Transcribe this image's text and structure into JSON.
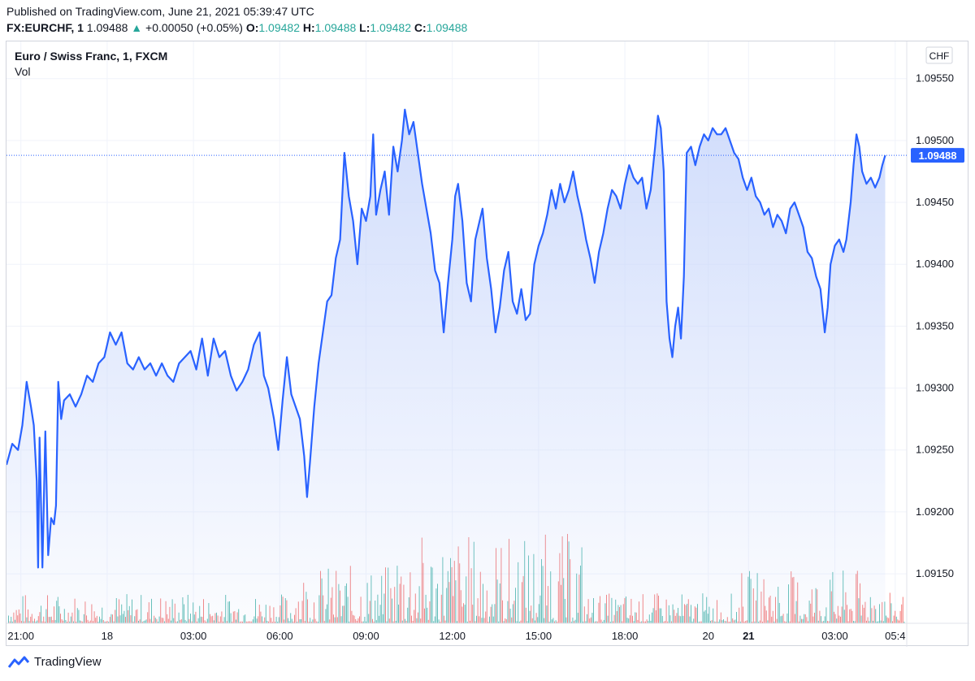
{
  "header": {
    "published": "Published on TradingView.com, June 21, 2021 05:39:47 UTC",
    "symbol": "FX:EURCHF, 1",
    "last": "1.09488",
    "arrow": "▲",
    "change": "+0.00050 (+0.05%)",
    "o_label": "O:",
    "o_value": "1.09482",
    "h_label": "H:",
    "h_value": "1.09488",
    "l_label": "L:",
    "l_value": "1.09482",
    "c_label": "C:",
    "c_value": "1.09488"
  },
  "footer": {
    "brand": "TradingView"
  },
  "colors": {
    "line": "#2962ff",
    "area_top": "#c8d6fb",
    "grid": "#f0f3fa",
    "vol_up": "#26a69a",
    "vol_down": "#ef5350",
    "text": "#131722",
    "price_tag": "#2962ff"
  },
  "chart_data": {
    "type": "area",
    "title": "Euro / Swiss Franc, 1, FXCM",
    "legend_extra": "Vol",
    "currency": "CHF",
    "last_price": "1.09488",
    "y_ticks": [
      "1.09550",
      "1.09500",
      "1.09450",
      "1.09400",
      "1.09350",
      "1.09300",
      "1.09250",
      "1.09200",
      "1.09150"
    ],
    "ylim": [
      1.0911,
      1.0958
    ],
    "x_ticks": [
      {
        "label": "21:00",
        "t": 0.5,
        "bold": false
      },
      {
        "label": "18",
        "t": 3.5,
        "bold": false
      },
      {
        "label": "03:00",
        "t": 6.5,
        "bold": false
      },
      {
        "label": "06:00",
        "t": 9.5,
        "bold": false
      },
      {
        "label": "09:00",
        "t": 12.5,
        "bold": false
      },
      {
        "label": "12:00",
        "t": 15.5,
        "bold": false
      },
      {
        "label": "15:00",
        "t": 18.5,
        "bold": false
      },
      {
        "label": "18:00",
        "t": 21.5,
        "bold": false
      },
      {
        "label": "20",
        "t": 24.4,
        "bold": false
      },
      {
        "label": "21",
        "t": 25.8,
        "bold": true
      },
      {
        "label": "03:00",
        "t": 28.8,
        "bold": false
      },
      {
        "label": "05:4",
        "t": 30.9,
        "bold": false
      }
    ],
    "xlim": [
      0,
      31.3
    ],
    "series": [
      {
        "values": [
          [
            0.0,
            1.09238
          ],
          [
            0.2,
            1.09255
          ],
          [
            0.4,
            1.0925
          ],
          [
            0.55,
            1.0927
          ],
          [
            0.7,
            1.09305
          ],
          [
            0.85,
            1.09285
          ],
          [
            0.95,
            1.0927
          ],
          [
            1.05,
            1.09225
          ],
          [
            1.1,
            1.09155
          ],
          [
            1.15,
            1.0926
          ],
          [
            1.25,
            1.09155
          ],
          [
            1.35,
            1.09265
          ],
          [
            1.45,
            1.09165
          ],
          [
            1.55,
            1.09195
          ],
          [
            1.65,
            1.0919
          ],
          [
            1.72,
            1.09205
          ],
          [
            1.8,
            1.09305
          ],
          [
            1.9,
            1.09275
          ],
          [
            2.0,
            1.0929
          ],
          [
            2.2,
            1.09295
          ],
          [
            2.4,
            1.09285
          ],
          [
            2.6,
            1.09295
          ],
          [
            2.8,
            1.0931
          ],
          [
            3.0,
            1.09305
          ],
          [
            3.2,
            1.0932
          ],
          [
            3.4,
            1.09325
          ],
          [
            3.6,
            1.09345
          ],
          [
            3.8,
            1.09335
          ],
          [
            4.0,
            1.09345
          ],
          [
            4.2,
            1.0932
          ],
          [
            4.4,
            1.09315
          ],
          [
            4.6,
            1.09325
          ],
          [
            4.8,
            1.09315
          ],
          [
            5.0,
            1.0932
          ],
          [
            5.2,
            1.0931
          ],
          [
            5.4,
            1.0932
          ],
          [
            5.6,
            1.0931
          ],
          [
            5.8,
            1.09305
          ],
          [
            6.0,
            1.0932
          ],
          [
            6.2,
            1.09325
          ],
          [
            6.4,
            1.0933
          ],
          [
            6.6,
            1.09315
          ],
          [
            6.8,
            1.0934
          ],
          [
            7.0,
            1.0931
          ],
          [
            7.2,
            1.0934
          ],
          [
            7.4,
            1.09325
          ],
          [
            7.6,
            1.0933
          ],
          [
            7.8,
            1.0931
          ],
          [
            8.0,
            1.09298
          ],
          [
            8.2,
            1.09305
          ],
          [
            8.4,
            1.09315
          ],
          [
            8.6,
            1.09335
          ],
          [
            8.8,
            1.09345
          ],
          [
            8.95,
            1.0931
          ],
          [
            9.1,
            1.093
          ],
          [
            9.3,
            1.09275
          ],
          [
            9.45,
            1.0925
          ],
          [
            9.6,
            1.0929
          ],
          [
            9.75,
            1.09325
          ],
          [
            9.9,
            1.09295
          ],
          [
            10.05,
            1.09285
          ],
          [
            10.2,
            1.09275
          ],
          [
            10.35,
            1.09245
          ],
          [
            10.45,
            1.09212
          ],
          [
            10.55,
            1.0924
          ],
          [
            10.7,
            1.09285
          ],
          [
            10.85,
            1.0932
          ],
          [
            11.0,
            1.09345
          ],
          [
            11.15,
            1.0937
          ],
          [
            11.3,
            1.09375
          ],
          [
            11.45,
            1.09405
          ],
          [
            11.6,
            1.0942
          ],
          [
            11.75,
            1.0949
          ],
          [
            11.9,
            1.09455
          ],
          [
            12.05,
            1.09435
          ],
          [
            12.2,
            1.094
          ],
          [
            12.35,
            1.09445
          ],
          [
            12.5,
            1.09435
          ],
          [
            12.65,
            1.09455
          ],
          [
            12.75,
            1.09505
          ],
          [
            12.85,
            1.0944
          ],
          [
            13.0,
            1.0946
          ],
          [
            13.15,
            1.09475
          ],
          [
            13.3,
            1.0944
          ],
          [
            13.45,
            1.09495
          ],
          [
            13.6,
            1.09475
          ],
          [
            13.75,
            1.095
          ],
          [
            13.85,
            1.09525
          ],
          [
            14.0,
            1.09505
          ],
          [
            14.15,
            1.09515
          ],
          [
            14.3,
            1.0949
          ],
          [
            14.45,
            1.09465
          ],
          [
            14.6,
            1.09445
          ],
          [
            14.75,
            1.09425
          ],
          [
            14.9,
            1.09395
          ],
          [
            15.05,
            1.09385
          ],
          [
            15.2,
            1.09345
          ],
          [
            15.35,
            1.09385
          ],
          [
            15.5,
            1.0942
          ],
          [
            15.6,
            1.09455
          ],
          [
            15.7,
            1.09465
          ],
          [
            15.85,
            1.09435
          ],
          [
            16.0,
            1.09385
          ],
          [
            16.15,
            1.0937
          ],
          [
            16.3,
            1.0942
          ],
          [
            16.45,
            1.09435
          ],
          [
            16.55,
            1.09445
          ],
          [
            16.7,
            1.09405
          ],
          [
            16.85,
            1.0938
          ],
          [
            17.0,
            1.09345
          ],
          [
            17.15,
            1.09365
          ],
          [
            17.3,
            1.09395
          ],
          [
            17.45,
            1.0941
          ],
          [
            17.6,
            1.0937
          ],
          [
            17.75,
            1.0936
          ],
          [
            17.9,
            1.0938
          ],
          [
            18.05,
            1.09355
          ],
          [
            18.2,
            1.0936
          ],
          [
            18.35,
            1.094
          ],
          [
            18.5,
            1.09415
          ],
          [
            18.65,
            1.09425
          ],
          [
            18.8,
            1.0944
          ],
          [
            18.95,
            1.0946
          ],
          [
            19.1,
            1.09445
          ],
          [
            19.25,
            1.09465
          ],
          [
            19.4,
            1.0945
          ],
          [
            19.55,
            1.0946
          ],
          [
            19.7,
            1.09475
          ],
          [
            19.85,
            1.09455
          ],
          [
            20.0,
            1.0944
          ],
          [
            20.15,
            1.0942
          ],
          [
            20.3,
            1.09405
          ],
          [
            20.45,
            1.09385
          ],
          [
            20.6,
            1.0941
          ],
          [
            20.75,
            1.09425
          ],
          [
            20.9,
            1.09445
          ],
          [
            21.05,
            1.0946
          ],
          [
            21.2,
            1.09455
          ],
          [
            21.35,
            1.09445
          ],
          [
            21.5,
            1.09465
          ],
          [
            21.65,
            1.0948
          ],
          [
            21.8,
            1.0947
          ],
          [
            21.95,
            1.09465
          ],
          [
            22.1,
            1.0947
          ],
          [
            22.25,
            1.09445
          ],
          [
            22.4,
            1.0946
          ],
          [
            22.55,
            1.09495
          ],
          [
            22.65,
            1.0952
          ],
          [
            22.75,
            1.0951
          ],
          [
            22.85,
            1.09475
          ],
          [
            22.95,
            1.0937
          ],
          [
            23.05,
            1.0934
          ],
          [
            23.15,
            1.09325
          ],
          [
            23.25,
            1.0935
          ],
          [
            23.35,
            1.09365
          ],
          [
            23.45,
            1.0934
          ],
          [
            23.55,
            1.0939
          ],
          [
            23.65,
            1.0949
          ],
          [
            23.8,
            1.09495
          ],
          [
            23.95,
            1.0948
          ],
          [
            24.1,
            1.09495
          ],
          [
            24.25,
            1.09505
          ],
          [
            24.4,
            1.095
          ],
          [
            24.55,
            1.0951
          ],
          [
            24.7,
            1.09505
          ],
          [
            24.85,
            1.09505
          ],
          [
            25.0,
            1.0951
          ],
          [
            25.15,
            1.095
          ],
          [
            25.3,
            1.0949
          ],
          [
            25.45,
            1.09485
          ],
          [
            25.6,
            1.0947
          ],
          [
            25.75,
            1.0946
          ],
          [
            25.9,
            1.0947
          ],
          [
            26.05,
            1.09455
          ],
          [
            26.2,
            1.0945
          ],
          [
            26.35,
            1.0944
          ],
          [
            26.5,
            1.09445
          ],
          [
            26.65,
            1.0943
          ],
          [
            26.8,
            1.0944
          ],
          [
            26.95,
            1.09435
          ],
          [
            27.1,
            1.09425
          ],
          [
            27.25,
            1.09445
          ],
          [
            27.4,
            1.0945
          ],
          [
            27.55,
            1.0944
          ],
          [
            27.7,
            1.0943
          ],
          [
            27.85,
            1.0941
          ],
          [
            28.0,
            1.09405
          ],
          [
            28.15,
            1.0939
          ],
          [
            28.3,
            1.0938
          ],
          [
            28.45,
            1.09345
          ],
          [
            28.55,
            1.09365
          ],
          [
            28.65,
            1.094
          ],
          [
            28.8,
            1.09415
          ],
          [
            28.95,
            1.0942
          ],
          [
            29.1,
            1.0941
          ],
          [
            29.2,
            1.0942
          ],
          [
            29.35,
            1.0945
          ],
          [
            29.45,
            1.0948
          ],
          [
            29.55,
            1.09505
          ],
          [
            29.65,
            1.09495
          ],
          [
            29.75,
            1.09475
          ],
          [
            29.9,
            1.09465
          ],
          [
            30.05,
            1.0947
          ],
          [
            30.2,
            1.09462
          ],
          [
            30.35,
            1.0947
          ],
          [
            30.45,
            1.0948
          ],
          [
            30.55,
            1.09488
          ]
        ]
      }
    ]
  }
}
